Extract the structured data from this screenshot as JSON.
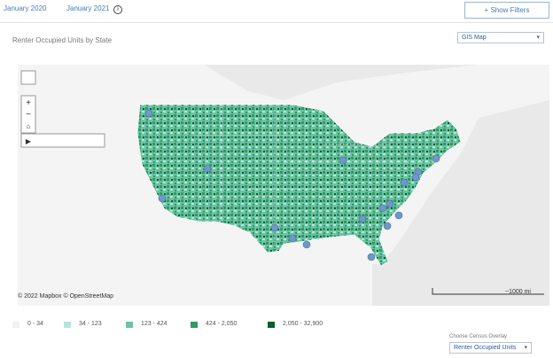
{
  "header": {
    "date_start": "January 2020",
    "date_end": "January 2021",
    "filters_button": "+ Show Filters"
  },
  "map": {
    "title": "Renter Occupied Units by State",
    "view_select": "GIS Map",
    "attribution": "© 2022 Mapbox © OpenStreetMap",
    "scale": "~1000 mi"
  },
  "legend": {
    "items": [
      {
        "label": "0 - 34",
        "color": "#f2f2f2"
      },
      {
        "label": "34 - 123",
        "color": "#b7e4da"
      },
      {
        "label": "123 - 424",
        "color": "#6cc2a4"
      },
      {
        "label": "424 - 2,050",
        "color": "#2f9a62"
      },
      {
        "label": "2,050 - 32,900",
        "color": "#0b5e2a"
      }
    ]
  },
  "overlay": {
    "label": "Choose Census Overlay",
    "select": "Renter Occupied Units"
  }
}
